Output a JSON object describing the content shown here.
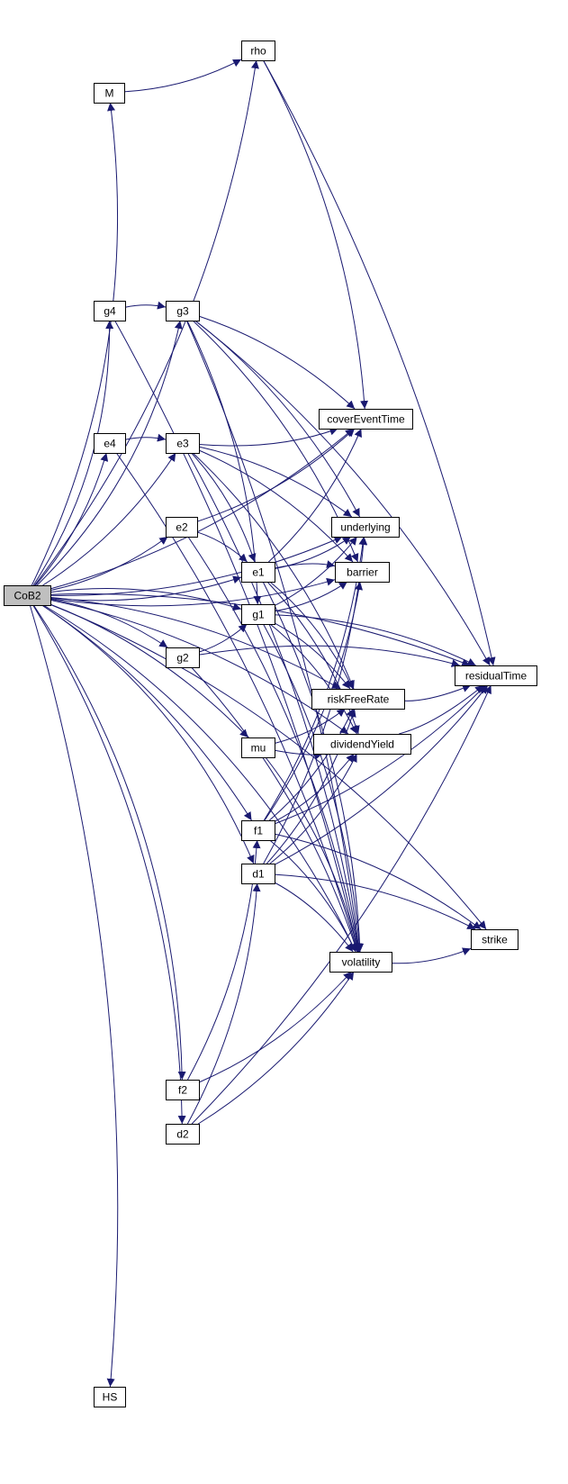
{
  "graph": {
    "root": "CoB2",
    "colors": {
      "edge": "#191970",
      "node_fill": "#ffffff",
      "root_fill": "#bfbfbf",
      "border": "#000000"
    },
    "nodes": [
      {
        "id": "CoB2",
        "label": "CoB2",
        "root": true
      },
      {
        "id": "rho",
        "label": "rho"
      },
      {
        "id": "M",
        "label": "M"
      },
      {
        "id": "g4",
        "label": "g4"
      },
      {
        "id": "g3",
        "label": "g3"
      },
      {
        "id": "coverEventTime",
        "label": "coverEventTime"
      },
      {
        "id": "e4",
        "label": "e4"
      },
      {
        "id": "e3",
        "label": "e3"
      },
      {
        "id": "underlying",
        "label": "underlying"
      },
      {
        "id": "e2",
        "label": "e2"
      },
      {
        "id": "barrier",
        "label": "barrier"
      },
      {
        "id": "e1",
        "label": "e1"
      },
      {
        "id": "g1",
        "label": "g1"
      },
      {
        "id": "g2",
        "label": "g2"
      },
      {
        "id": "residualTime",
        "label": "residualTime"
      },
      {
        "id": "riskFreeRate",
        "label": "riskFreeRate"
      },
      {
        "id": "mu",
        "label": "mu"
      },
      {
        "id": "dividendYield",
        "label": "dividendYield"
      },
      {
        "id": "f1",
        "label": "f1"
      },
      {
        "id": "d1",
        "label": "d1"
      },
      {
        "id": "strike",
        "label": "strike"
      },
      {
        "id": "volatility",
        "label": "volatility"
      },
      {
        "id": "f2",
        "label": "f2"
      },
      {
        "id": "d2",
        "label": "d2"
      },
      {
        "id": "HS",
        "label": "HS"
      }
    ],
    "edges": [
      [
        "CoB2",
        "M"
      ],
      [
        "CoB2",
        "rho"
      ],
      [
        "CoB2",
        "residualTime"
      ],
      [
        "CoB2",
        "g4"
      ],
      [
        "CoB2",
        "g3"
      ],
      [
        "CoB2",
        "coverEventTime"
      ],
      [
        "CoB2",
        "underlying"
      ],
      [
        "CoB2",
        "e4"
      ],
      [
        "CoB2",
        "e3"
      ],
      [
        "CoB2",
        "e2"
      ],
      [
        "CoB2",
        "e1"
      ],
      [
        "CoB2",
        "barrier"
      ],
      [
        "CoB2",
        "g1"
      ],
      [
        "CoB2",
        "g2"
      ],
      [
        "CoB2",
        "riskFreeRate"
      ],
      [
        "CoB2",
        "mu"
      ],
      [
        "CoB2",
        "dividendYield"
      ],
      [
        "CoB2",
        "f1"
      ],
      [
        "CoB2",
        "d1"
      ],
      [
        "CoB2",
        "f2"
      ],
      [
        "CoB2",
        "d2"
      ],
      [
        "CoB2",
        "HS"
      ],
      [
        "CoB2",
        "strike"
      ],
      [
        "CoB2",
        "volatility"
      ],
      [
        "M",
        "rho"
      ],
      [
        "rho",
        "residualTime"
      ],
      [
        "rho",
        "coverEventTime"
      ],
      [
        "g4",
        "g3"
      ],
      [
        "g4",
        "volatility"
      ],
      [
        "g3",
        "coverEventTime"
      ],
      [
        "g3",
        "residualTime"
      ],
      [
        "g3",
        "underlying"
      ],
      [
        "g3",
        "barrier"
      ],
      [
        "g3",
        "g1"
      ],
      [
        "g3",
        "volatility"
      ],
      [
        "e4",
        "e3"
      ],
      [
        "e4",
        "volatility"
      ],
      [
        "e3",
        "coverEventTime"
      ],
      [
        "e3",
        "underlying"
      ],
      [
        "e3",
        "barrier"
      ],
      [
        "e3",
        "e1"
      ],
      [
        "e3",
        "riskFreeRate"
      ],
      [
        "e3",
        "volatility"
      ],
      [
        "e2",
        "coverEventTime"
      ],
      [
        "e2",
        "e1"
      ],
      [
        "e2",
        "volatility"
      ],
      [
        "e1",
        "underlying"
      ],
      [
        "e1",
        "barrier"
      ],
      [
        "e1",
        "coverEventTime"
      ],
      [
        "e1",
        "riskFreeRate"
      ],
      [
        "e1",
        "dividendYield"
      ],
      [
        "e1",
        "volatility"
      ],
      [
        "g2",
        "g1"
      ],
      [
        "g2",
        "residualTime"
      ],
      [
        "g2",
        "volatility"
      ],
      [
        "g1",
        "barrier"
      ],
      [
        "g1",
        "underlying"
      ],
      [
        "g1",
        "residualTime"
      ],
      [
        "g1",
        "riskFreeRate"
      ],
      [
        "g1",
        "dividendYield"
      ],
      [
        "g1",
        "volatility"
      ],
      [
        "mu",
        "riskFreeRate"
      ],
      [
        "mu",
        "dividendYield"
      ],
      [
        "mu",
        "volatility"
      ],
      [
        "riskFreeRate",
        "residualTime"
      ],
      [
        "dividendYield",
        "residualTime"
      ],
      [
        "volatility",
        "strike"
      ],
      [
        "f1",
        "strike"
      ],
      [
        "f1",
        "residualTime"
      ],
      [
        "f1",
        "underlying"
      ],
      [
        "f1",
        "barrier"
      ],
      [
        "f1",
        "riskFreeRate"
      ],
      [
        "f1",
        "dividendYield"
      ],
      [
        "f1",
        "volatility"
      ],
      [
        "d1",
        "strike"
      ],
      [
        "d1",
        "residualTime"
      ],
      [
        "d1",
        "underlying"
      ],
      [
        "d1",
        "riskFreeRate"
      ],
      [
        "d1",
        "dividendYield"
      ],
      [
        "d1",
        "volatility"
      ],
      [
        "f2",
        "f1"
      ],
      [
        "f2",
        "volatility"
      ],
      [
        "d2",
        "d1"
      ],
      [
        "d2",
        "residualTime"
      ],
      [
        "d2",
        "volatility"
      ]
    ]
  }
}
